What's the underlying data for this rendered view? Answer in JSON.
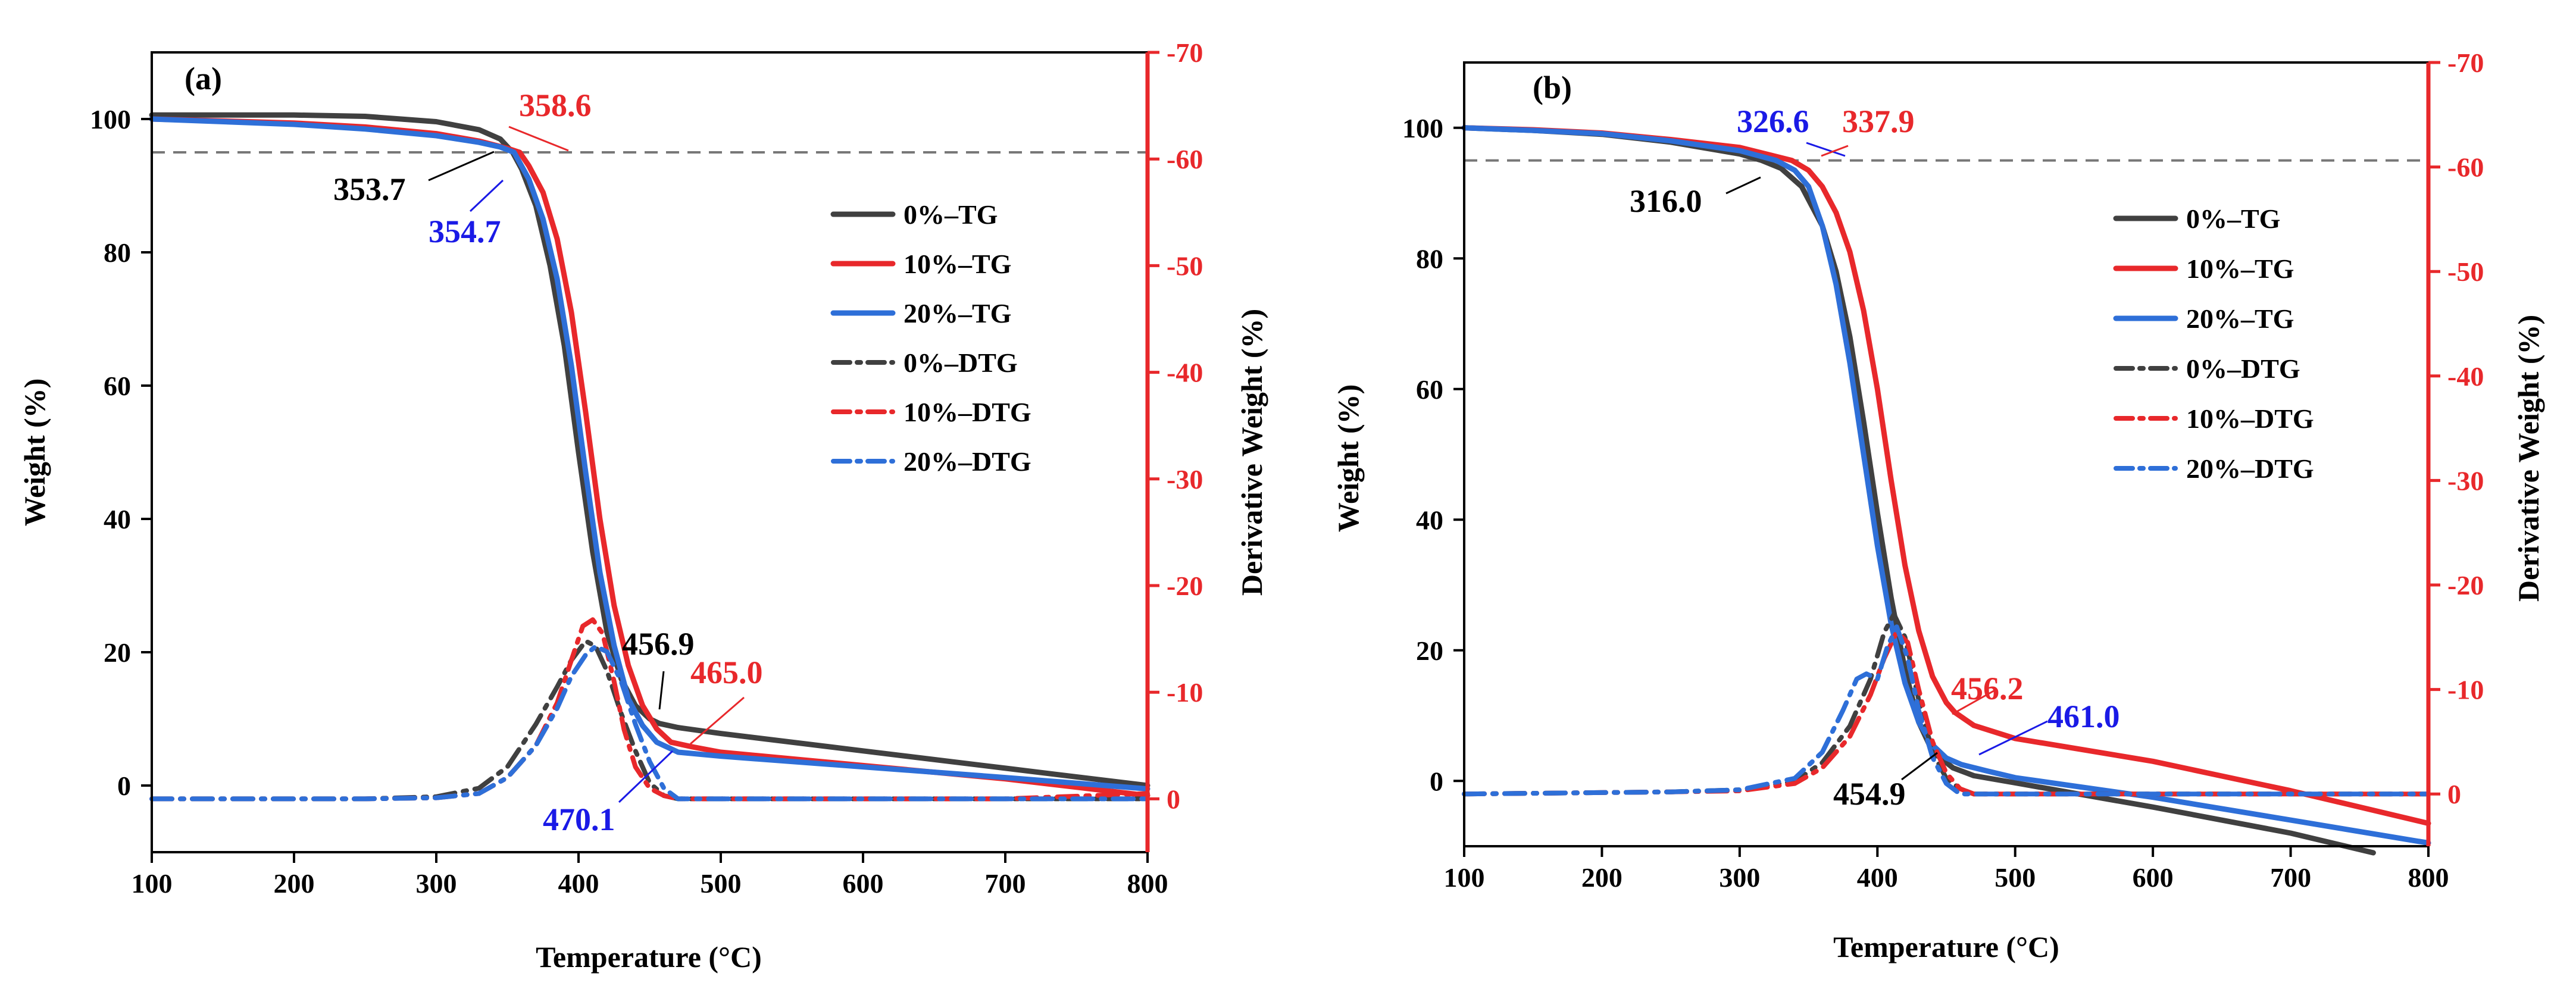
{
  "chart_data": [
    {
      "type": "line",
      "panel_label": "(a)",
      "xlabel": "Temperature (°C)",
      "ylabel": "Weight (%)",
      "ylabel_right": "Derivative Weight (%)",
      "xlim": [
        100,
        800
      ],
      "ylim": [
        -10,
        110
      ],
      "ylim_right": [
        5,
        -70
      ],
      "xticks": [
        100,
        200,
        300,
        400,
        500,
        600,
        700,
        800
      ],
      "yticks": [
        0,
        20,
        40,
        60,
        80,
        100
      ],
      "yticks_right": [
        0,
        -10,
        -20,
        -30,
        -40,
        -50,
        -60,
        -70
      ],
      "reference_line_y": 95,
      "legend_position": "right-middle",
      "series": [
        {
          "name": "0%–TG",
          "axis": "left",
          "color": "#404040",
          "style": "solid",
          "x": [
            100,
            200,
            250,
            300,
            330,
            345,
            353.7,
            360,
            370,
            380,
            390,
            400,
            410,
            420,
            430,
            440,
            450,
            456.9,
            470,
            500,
            600,
            700,
            800
          ],
          "y": [
            100.6,
            100.6,
            100.4,
            99.6,
            98.4,
            97,
            95,
            92.5,
            87,
            78,
            66,
            50,
            35,
            23,
            16,
            12,
            10,
            9.3,
            8.7,
            7.8,
            5.2,
            2.6,
            0
          ]
        },
        {
          "name": "10%–TG",
          "axis": "left",
          "color": "#E8282B",
          "style": "solid",
          "x": [
            100,
            200,
            250,
            300,
            330,
            350,
            358.6,
            365,
            375,
            385,
            395,
            405,
            415,
            425,
            435,
            445,
            455,
            465,
            480,
            500,
            600,
            700,
            800
          ],
          "y": [
            100,
            99.4,
            98.8,
            97.8,
            96.7,
            95.6,
            95,
            93,
            89,
            82,
            71,
            56,
            40,
            27,
            18,
            12,
            8.5,
            6.5,
            5.8,
            5,
            3,
            1,
            -1.5
          ]
        },
        {
          "name": "20%–TG",
          "axis": "left",
          "color": "#2E6FD8",
          "style": "solid",
          "x": [
            100,
            200,
            250,
            300,
            330,
            345,
            354.7,
            365,
            375,
            385,
            395,
            405,
            415,
            425,
            435,
            445,
            455,
            470.1,
            500,
            600,
            700,
            800
          ],
          "y": [
            100,
            99.2,
            98.5,
            97.5,
            96.5,
            95.8,
            95,
            91,
            85,
            76,
            63,
            47,
            32,
            21,
            13,
            9,
            6.5,
            5,
            4.4,
            2.8,
            1.2,
            -0.5
          ]
        },
        {
          "name": "0%–DTG",
          "axis": "right",
          "color": "#404040",
          "style": "dashdot",
          "x": [
            100,
            250,
            300,
            330,
            350,
            370,
            385,
            395,
            405,
            412,
            420,
            430,
            440,
            450,
            460,
            470,
            500,
            600,
            700,
            800
          ],
          "y": [
            0,
            0,
            -0.2,
            -1,
            -3,
            -7,
            -10.5,
            -13,
            -14.8,
            -14.3,
            -12,
            -8,
            -4.5,
            -1.5,
            -0.3,
            0,
            0,
            0,
            0,
            0
          ]
        },
        {
          "name": "10%–DTG",
          "axis": "right",
          "color": "#E8282B",
          "style": "dashdot",
          "x": [
            100,
            250,
            300,
            330,
            350,
            370,
            385,
            395,
            403,
            410,
            417,
            425,
            432,
            440,
            450,
            460,
            470,
            500,
            600,
            700,
            800
          ],
          "y": [
            0,
            0,
            -0.1,
            -0.5,
            -2,
            -5,
            -9,
            -13,
            -16.2,
            -16.8,
            -15.5,
            -11,
            -6.5,
            -3,
            -1,
            -0.3,
            0,
            0,
            0,
            0,
            -0.5
          ]
        },
        {
          "name": "20%–DTG",
          "axis": "right",
          "color": "#2E6FD8",
          "style": "dashdot",
          "x": [
            100,
            250,
            300,
            330,
            350,
            370,
            385,
            395,
            405,
            412,
            420,
            430,
            440,
            450,
            460,
            470,
            500,
            600,
            700,
            800
          ],
          "y": [
            0,
            0,
            -0.1,
            -0.5,
            -2,
            -5,
            -8.5,
            -11.5,
            -13.5,
            -14.3,
            -13.8,
            -11,
            -7,
            -3.5,
            -1,
            0,
            0,
            0,
            0,
            0
          ]
        }
      ],
      "annotations": [
        {
          "text": "358.6",
          "color": "#E8282B",
          "x": 358.6,
          "y": 95
        },
        {
          "text": "353.7",
          "color": "#000000",
          "x": 353.7,
          "y": 95
        },
        {
          "text": "354.7",
          "color": "#1A1AE6",
          "x": 354.7,
          "y": 95
        },
        {
          "text": "456.9",
          "color": "#000000",
          "x": 456.9,
          "y": 9.3
        },
        {
          "text": "465.0",
          "color": "#E8282B",
          "x": 465.0,
          "y": 6.5
        },
        {
          "text": "470.1",
          "color": "#1A1AE6",
          "x": 470.1,
          "y": 5
        }
      ]
    },
    {
      "type": "line",
      "panel_label": "(b)",
      "xlabel": "Temperature (°C)",
      "ylabel": "Weight (%)",
      "ylabel_right": "Derivative Weight (%)",
      "xlim": [
        100,
        800
      ],
      "ylim": [
        -10,
        110
      ],
      "ylim_right": [
        5,
        -70
      ],
      "xticks": [
        100,
        200,
        300,
        400,
        500,
        600,
        700,
        800
      ],
      "yticks": [
        0,
        20,
        40,
        60,
        80,
        100
      ],
      "yticks_right": [
        0,
        -10,
        -20,
        -30,
        -40,
        -50,
        -60,
        -70
      ],
      "reference_line_y": 95,
      "legend_position": "right-middle",
      "series": [
        {
          "name": "0%–TG",
          "axis": "left",
          "color": "#404040",
          "style": "solid",
          "x": [
            100,
            150,
            200,
            250,
            300,
            316,
            330,
            345,
            360,
            370,
            380,
            390,
            400,
            410,
            420,
            430,
            440,
            454.9,
            470,
            500,
            600,
            700,
            760
          ],
          "y": [
            100,
            99.6,
            99,
            97.8,
            96,
            95,
            93.8,
            91,
            85,
            78,
            68,
            55,
            41,
            28,
            17,
            9,
            4.5,
            2,
            0.8,
            -0.3,
            -4,
            -8,
            -11
          ]
        },
        {
          "name": "10%–TG",
          "axis": "left",
          "color": "#E8282B",
          "style": "solid",
          "x": [
            100,
            150,
            200,
            250,
            300,
            337.9,
            350,
            360,
            370,
            380,
            390,
            400,
            410,
            420,
            430,
            440,
            450,
            456.2,
            470,
            500,
            600,
            700,
            800
          ],
          "y": [
            100,
            99.7,
            99.2,
            98.2,
            97,
            95,
            93.5,
            91,
            87,
            81,
            72,
            60,
            46,
            33,
            23,
            16,
            12,
            10.5,
            8.5,
            6.5,
            3,
            -1.5,
            -6.5
          ]
        },
        {
          "name": "20%–TG",
          "axis": "left",
          "color": "#2E6FD8",
          "style": "solid",
          "x": [
            100,
            150,
            200,
            250,
            300,
            326.6,
            340,
            350,
            360,
            370,
            380,
            390,
            400,
            410,
            420,
            430,
            440,
            450,
            461.0,
            480,
            500,
            600,
            700,
            800
          ],
          "y": [
            100,
            99.6,
            99.1,
            98,
            96.5,
            95,
            93.5,
            91,
            85,
            76,
            64,
            50,
            36,
            24,
            15,
            9,
            5.5,
            3.5,
            2.5,
            1.5,
            0.5,
            -2.5,
            -6,
            -9.5
          ]
        },
        {
          "name": "0%–DTG",
          "axis": "right",
          "color": "#404040",
          "style": "dashdot",
          "x": [
            100,
            250,
            300,
            340,
            360,
            380,
            395,
            405,
            412,
            420,
            430,
            440,
            450,
            460,
            470,
            500,
            600,
            700,
            800
          ],
          "y": [
            0,
            -0.2,
            -0.4,
            -1.2,
            -3,
            -6.5,
            -11,
            -15.5,
            -17.2,
            -15,
            -9,
            -4,
            -1.5,
            -0.5,
            0,
            0,
            0,
            0,
            0
          ]
        },
        {
          "name": "10%–DTG",
          "axis": "right",
          "color": "#E8282B",
          "style": "dashdot",
          "x": [
            100,
            250,
            300,
            340,
            360,
            380,
            395,
            405,
            414,
            422,
            430,
            440,
            450,
            460,
            470,
            500,
            600,
            700,
            800
          ],
          "y": [
            0,
            -0.2,
            -0.3,
            -1,
            -2.5,
            -5.5,
            -9.5,
            -13,
            -15.5,
            -14.5,
            -10,
            -5,
            -2,
            -0.5,
            0,
            0,
            0,
            0,
            0
          ]
        },
        {
          "name": "20%–DTG",
          "axis": "right",
          "color": "#2E6FD8",
          "style": "dashdot",
          "x": [
            100,
            250,
            300,
            340,
            360,
            375,
            385,
            392,
            400,
            407,
            414,
            422,
            430,
            440,
            450,
            460,
            470,
            500,
            600,
            700,
            800
          ],
          "y": [
            0,
            -0.2,
            -0.4,
            -1.5,
            -4,
            -8,
            -11,
            -11.5,
            -11,
            -14,
            -16,
            -13,
            -8,
            -3.5,
            -1,
            0,
            0,
            0,
            0,
            0,
            0
          ]
        }
      ],
      "annotations": [
        {
          "text": "326.6",
          "color": "#1A1AE6",
          "x": 326.6,
          "y": 95
        },
        {
          "text": "337.9",
          "color": "#E8282B",
          "x": 337.9,
          "y": 95
        },
        {
          "text": "316.0",
          "color": "#000000",
          "x": 316.0,
          "y": 95
        },
        {
          "text": "456.2",
          "color": "#E8282B",
          "x": 456.2,
          "y": 10.5
        },
        {
          "text": "461.0",
          "color": "#1A1AE6",
          "x": 461.0,
          "y": 2.5
        },
        {
          "text": "454.9",
          "color": "#000000",
          "x": 454.9,
          "y": 2
        }
      ]
    }
  ],
  "colors": {
    "axis": "#000000",
    "right_axis": "#E8282B",
    "reference_line": "#777777"
  }
}
